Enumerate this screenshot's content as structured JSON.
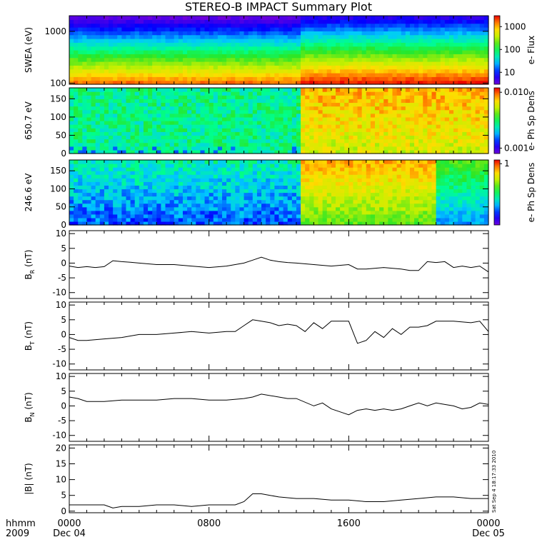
{
  "title": "STEREO-B IMPACT Summary Plot",
  "corner": {
    "line1": "hhmm",
    "line2": "2009"
  },
  "stamp": "Sat Sep  4 18:17:33 2010",
  "time_axis": {
    "ticks": [
      {
        "label": "0000",
        "date": "Dec 04",
        "hour": 0
      },
      {
        "label": "0800",
        "date": "",
        "hour": 8
      },
      {
        "label": "1600",
        "date": "",
        "hour": 16
      },
      {
        "label": "0000",
        "date": "Dec 05",
        "hour": 24
      }
    ],
    "range_hours": [
      0,
      24
    ]
  },
  "chart_data": [
    {
      "type": "heatmap",
      "ylabel": "SWEA (eV)",
      "yscale": "log",
      "ylim": [
        95,
        2000
      ],
      "yticks": [
        {
          "label": "100",
          "value": 100
        },
        {
          "label": "1000",
          "value": 1000
        }
      ],
      "colorbar": {
        "label": "e- Flux",
        "scale": "log",
        "ticks": [
          {
            "label": "1000",
            "value": 1000
          },
          {
            "label": "100",
            "value": 100
          },
          {
            "label": "10",
            "value": 10
          }
        ],
        "range": [
          3,
          3000
        ]
      },
      "regime_change_hour": 13.2,
      "dominant_colors": [
        "#ff0000",
        "#ffff00",
        "#00ff00",
        "#00ffff",
        "#0000ff",
        "#7f00ff"
      ]
    },
    {
      "type": "heatmap",
      "ylabel": "650.7 eV",
      "ylim": [
        0,
        180
      ],
      "yticks": [
        {
          "label": "0",
          "value": 0
        },
        {
          "label": "50",
          "value": 50
        },
        {
          "label": "100",
          "value": 100
        },
        {
          "label": "150",
          "value": 150
        }
      ],
      "colorbar": {
        "label": "e- Ph Sp Dens",
        "scale": "log",
        "ticks": [
          {
            "label": "0.010",
            "value": 0.01
          },
          {
            "label": "0.001",
            "value": 0.001
          }
        ],
        "range": [
          0.0008,
          0.012
        ]
      },
      "regime_change_hour": 13.2
    },
    {
      "type": "heatmap",
      "ylabel": "246.6 eV",
      "ylim": [
        0,
        180
      ],
      "yticks": [
        {
          "label": "0",
          "value": 0
        },
        {
          "label": "50",
          "value": 50
        },
        {
          "label": "100",
          "value": 100
        },
        {
          "label": "150",
          "value": 150
        }
      ],
      "colorbar": {
        "label": "e- Ph Sp Dens",
        "scale": "log",
        "ticks": [
          {
            "label": "1",
            "value": 1
          }
        ],
        "range": [
          0.05,
          1.2
        ]
      },
      "regime_change_hour": 13.2
    },
    {
      "type": "line",
      "ylabel": "B",
      "ylabel_sub": "R",
      "ylabel_unit": "(nT)",
      "ylim": [
        -12,
        11
      ],
      "yticks": [
        {
          "label": "10",
          "value": 10
        },
        {
          "label": "5",
          "value": 5
        },
        {
          "label": "0",
          "value": 0
        },
        {
          "label": "-5",
          "value": -5
        },
        {
          "label": "-10",
          "value": -10
        }
      ],
      "x": [
        0,
        0.5,
        1,
        1.5,
        2,
        2.5,
        3,
        3.5,
        4,
        5,
        6,
        7,
        8,
        9,
        10,
        10.5,
        11,
        11.5,
        12,
        12.5,
        13,
        14,
        15,
        16,
        16.5,
        17,
        18,
        19,
        19.5,
        20,
        20.5,
        21,
        21.5,
        22,
        22.5,
        23,
        23.5,
        24
      ],
      "values": [
        -1,
        -1.5,
        -1.2,
        -1.5,
        -1.2,
        0.8,
        0.5,
        0.3,
        0,
        -0.5,
        -0.5,
        -1,
        -1.5,
        -1,
        0,
        1,
        2,
        1,
        0.5,
        0.2,
        0,
        -0.5,
        -1,
        -0.5,
        -2,
        -2,
        -1.5,
        -2,
        -2.5,
        -2.5,
        0.5,
        0.2,
        0.5,
        -1.5,
        -1,
        -1.5,
        -1,
        -3
      ]
    },
    {
      "type": "line",
      "ylabel": "B",
      "ylabel_sub": "T",
      "ylabel_unit": "(nT)",
      "ylim": [
        -12,
        11
      ],
      "yticks": [
        {
          "label": "10",
          "value": 10
        },
        {
          "label": "5",
          "value": 5
        },
        {
          "label": "0",
          "value": 0
        },
        {
          "label": "-5",
          "value": -5
        },
        {
          "label": "-10",
          "value": -10
        }
      ],
      "x": [
        0,
        0.5,
        1,
        2,
        3,
        4,
        5,
        6,
        7,
        8,
        9,
        9.5,
        10,
        10.5,
        11,
        11.5,
        12,
        12.5,
        13,
        13.5,
        14,
        14.5,
        15,
        15.5,
        16,
        16.5,
        17,
        17.5,
        18,
        18.5,
        19,
        19.5,
        20,
        20.5,
        21,
        22,
        23,
        23.5,
        24
      ],
      "values": [
        -1,
        -2,
        -2,
        -1.5,
        -1,
        0,
        0,
        0.5,
        1,
        0.5,
        1,
        1,
        3,
        5,
        4.5,
        4,
        3,
        3.5,
        3,
        1,
        4,
        2,
        4.5,
        4.5,
        4.5,
        -3,
        -2,
        1,
        -1,
        2,
        0,
        2.5,
        2.5,
        3,
        4.5,
        4.5,
        4,
        4.5,
        1
      ]
    },
    {
      "type": "line",
      "ylabel": "B",
      "ylabel_sub": "N",
      "ylabel_unit": "(nT)",
      "ylim": [
        -12,
        11
      ],
      "yticks": [
        {
          "label": "10",
          "value": 10
        },
        {
          "label": "5",
          "value": 5
        },
        {
          "label": "0",
          "value": 0
        },
        {
          "label": "-5",
          "value": -5
        },
        {
          "label": "-10",
          "value": -10
        }
      ],
      "x": [
        0,
        0.5,
        1,
        2,
        3,
        4,
        5,
        6,
        7,
        8,
        9,
        10,
        10.5,
        11,
        12,
        12.5,
        13,
        14,
        14.5,
        15,
        15.5,
        16,
        16.5,
        17,
        17.5,
        18,
        18.5,
        19,
        19.5,
        20,
        20.5,
        21,
        21.5,
        22,
        22.5,
        23,
        23.5,
        24
      ],
      "values": [
        3,
        2.5,
        1.5,
        1.5,
        2,
        2,
        2,
        2.5,
        2.5,
        2,
        2,
        2.5,
        3,
        4,
        3,
        2.5,
        2.5,
        0,
        1,
        -1,
        -2,
        -3,
        -1.5,
        -1,
        -1.5,
        -1,
        -1.5,
        -1,
        0,
        1,
        0,
        1,
        0.5,
        0,
        -1,
        -0.5,
        1,
        0.5
      ]
    },
    {
      "type": "line",
      "ylabel": "|B|",
      "ylabel_unit": "(nT)",
      "ylim": [
        -0.5,
        21
      ],
      "yticks": [
        {
          "label": "20",
          "value": 20
        },
        {
          "label": "15",
          "value": 15
        },
        {
          "label": "10",
          "value": 10
        },
        {
          "label": "5",
          "value": 5
        },
        {
          "label": "0",
          "value": 0
        }
      ],
      "x": [
        0,
        1,
        2,
        2.5,
        3,
        4,
        5,
        6,
        7,
        8,
        9,
        9.5,
        10,
        10.5,
        11,
        11.5,
        12,
        13,
        14,
        15,
        16,
        17,
        18,
        19,
        20,
        21,
        22,
        23,
        24
      ],
      "values": [
        2,
        2,
        2,
        1,
        1.5,
        1.5,
        2,
        2,
        1.5,
        2,
        2,
        2,
        3,
        5.5,
        5.5,
        5,
        4.5,
        4,
        4,
        3.5,
        3.5,
        3,
        3,
        3.5,
        4,
        4.5,
        4.5,
        4,
        4
      ]
    }
  ]
}
